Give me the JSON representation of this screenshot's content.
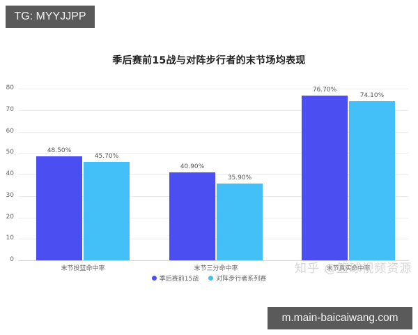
{
  "badges": {
    "top_left": "TG: MYYJJPP",
    "bottom_right": "m.main-baicaiwang.com"
  },
  "watermark": "知乎 @篮球视频资源",
  "colors": {
    "series0": "#4b4ef0",
    "series1": "#42c0f7"
  },
  "chart_data": {
    "type": "bar",
    "title": "季后赛前15战与对阵步行者的末节场均表现",
    "xlabel": "",
    "ylabel": "",
    "ylim": [
      0,
      80
    ],
    "yticks": [
      "0",
      "10",
      "20",
      "30",
      "40",
      "50",
      "60",
      "70",
      "80"
    ],
    "grid": true,
    "legend_position": "bottom",
    "categories": [
      "末节投篮命中率",
      "末节三分命中率",
      "末节真实命中率"
    ],
    "series": [
      {
        "name": "季后赛前15战",
        "values": [
          48.5,
          40.9,
          76.7
        ],
        "labels": [
          "48.50%",
          "40.90%",
          "76.70%"
        ]
      },
      {
        "name": "对阵步行者系列赛",
        "values": [
          45.7,
          35.9,
          74.1
        ],
        "labels": [
          "45.70%",
          "35.90%",
          "74.10%"
        ]
      }
    ]
  }
}
